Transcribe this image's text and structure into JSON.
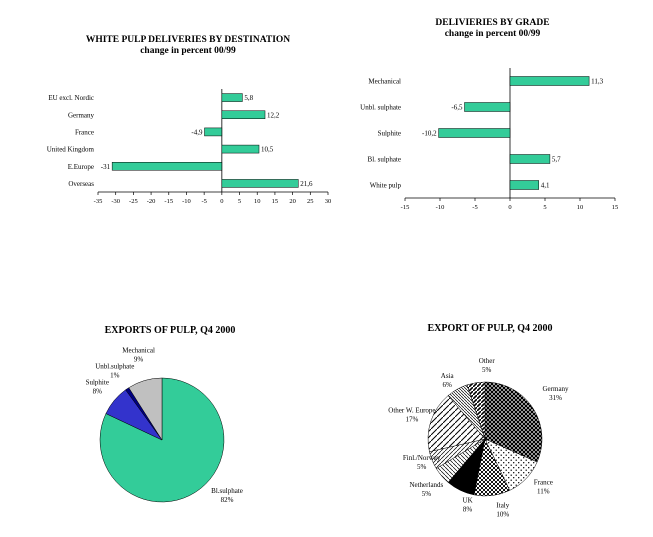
{
  "page": {
    "background": "#ffffff"
  },
  "chart_data": [
    {
      "id": "white-pulp-deliveries-by-destination",
      "type": "bar",
      "orientation": "horizontal",
      "title": "WHITE PULP DELIVERIES BY DESTINATION",
      "subtitle": "change in percent 00/99",
      "categories": [
        "EU excl. Nordic",
        "Germany",
        "France",
        "United Kingdom",
        "E.Europe",
        "Overseas"
      ],
      "values": [
        5.8,
        12.2,
        -4.9,
        10.5,
        -31,
        21.6
      ],
      "value_labels": [
        "5,8",
        "12,2",
        "-4,9",
        "10,5",
        "-31",
        "21,6"
      ],
      "xlim": [
        -35,
        30
      ],
      "xticks": [
        -35,
        -30,
        -25,
        -20,
        -15,
        -10,
        -5,
        0,
        5,
        10,
        15,
        20,
        25,
        30
      ],
      "bar_color": "#33cc99",
      "grid": false,
      "legend": "none",
      "xlabel": "",
      "ylabel": ""
    },
    {
      "id": "deliveries-by-grade",
      "type": "bar",
      "orientation": "horizontal",
      "title": "DELIVIERIES BY GRADE",
      "subtitle": "change in percent 00/99",
      "categories": [
        "Mechanical",
        "Unbl. sulphate",
        "Sulphite",
        "Bl. sulphate",
        "White pulp"
      ],
      "values": [
        11.3,
        -6.5,
        -10.2,
        5.7,
        4.1
      ],
      "value_labels": [
        "11,3",
        "-6,5",
        "-10,2",
        "5,7",
        "4,1"
      ],
      "xlim": [
        -15,
        15
      ],
      "xticks": [
        -15,
        -10,
        -5,
        0,
        5,
        10,
        15
      ],
      "bar_color": "#33cc99",
      "grid": false,
      "legend": "none",
      "xlabel": "",
      "ylabel": ""
    },
    {
      "id": "exports-of-pulp-by-grade-pie",
      "type": "pie",
      "title": "EXPORTS OF PULP, Q4 2000",
      "legend": "none",
      "slices": [
        {
          "label": "Bl.sulphate",
          "pct_label": "82%",
          "value": 82,
          "color": "#33cc99"
        },
        {
          "label": "Sulphite",
          "pct_label": "8%",
          "value": 8,
          "color": "#3333cc"
        },
        {
          "label": "Unbl.sulphate",
          "pct_label": "1%",
          "value": 1,
          "color": "#000080"
        },
        {
          "label": "Mechanical",
          "pct_label": "9%",
          "value": 9,
          "color": "#c0c0c0"
        }
      ]
    },
    {
      "id": "export-of-pulp-by-country-pie",
      "type": "pie",
      "title": "EXPORT OF PULP, Q4 2000",
      "legend": "none",
      "slices": [
        {
          "label": "Germany",
          "pct_label": "31%",
          "value": 31,
          "pattern": "dots-white-on-black"
        },
        {
          "label": "France",
          "pct_label": "11%",
          "value": 11,
          "pattern": "dots-sparse"
        },
        {
          "label": "Italy",
          "pct_label": "10%",
          "value": 10,
          "pattern": "dots-dense"
        },
        {
          "label": "UK",
          "pct_label": "8%",
          "value": 8,
          "pattern": "solid-black"
        },
        {
          "label": "Netherlands",
          "pct_label": "5%",
          "value": 5,
          "pattern": "diag-left"
        },
        {
          "label": "Finl./Norway",
          "pct_label": "5%",
          "value": 5,
          "pattern": "diag-right"
        },
        {
          "label": "Other W. Europe",
          "pct_label": "17%",
          "value": 17,
          "pattern": "diag-wide"
        },
        {
          "label": "Asia",
          "pct_label": "6%",
          "value": 6,
          "pattern": "diag-dense"
        },
        {
          "label": "Other",
          "pct_label": "5%",
          "value": 5,
          "pattern": "diag-thick"
        }
      ]
    }
  ]
}
